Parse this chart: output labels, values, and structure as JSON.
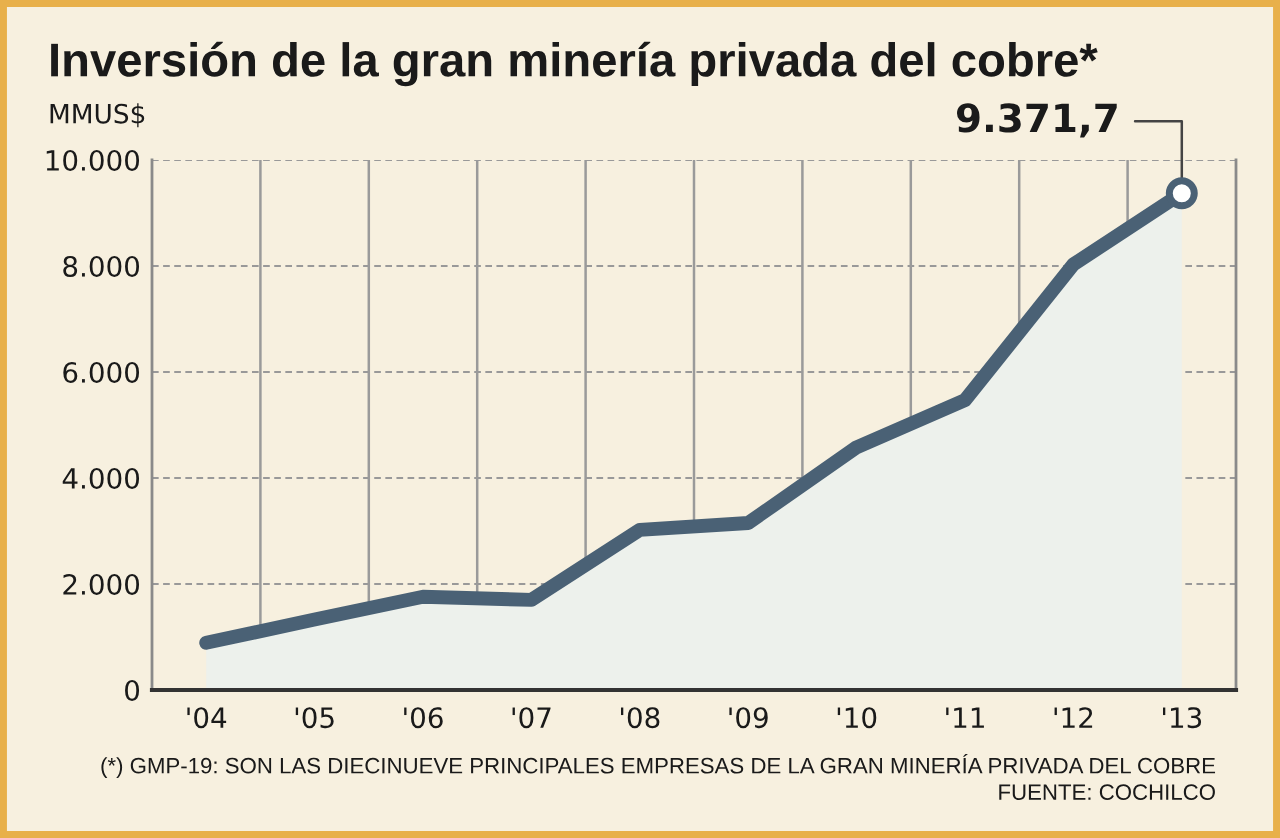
{
  "chart_data": {
    "type": "area",
    "title": "Inversión de la gran minería privada del cobre*",
    "ylabel": "MMUS$",
    "categories": [
      "'04",
      "'05",
      "'06",
      "'07",
      "'08",
      "'09",
      "'10",
      "'11",
      "'12",
      "'13"
    ],
    "series": [
      {
        "color": "#4a6175",
        "values": [
          890,
          1330,
          1760,
          1700,
          3020,
          3150,
          4580,
          5470,
          8030,
          9371.7
        ],
        "value_labels": [
          null,
          null,
          null,
          null,
          null,
          null,
          null,
          null,
          null,
          "9.371,7"
        ]
      }
    ],
    "ylim": [
      0,
      10000
    ],
    "yticks": [
      0,
      {
        "value": 2000,
        "label": "2.000"
      },
      {
        "value": 4000,
        "label": "4.000"
      },
      {
        "value": 6000,
        "label": "6.000"
      },
      {
        "value": 8000,
        "label": "8.000"
      },
      {
        "value": 10000,
        "label": "10.000"
      }
    ],
    "grid": true,
    "annotations": [
      "(*) GMP-19: SON LAS DIECINUEVE PRINCIPALES EMPRESAS DE LA GRAN MINERÍA PRIVADA DEL COBRE",
      "FUENTE: COCHILCO"
    ]
  }
}
